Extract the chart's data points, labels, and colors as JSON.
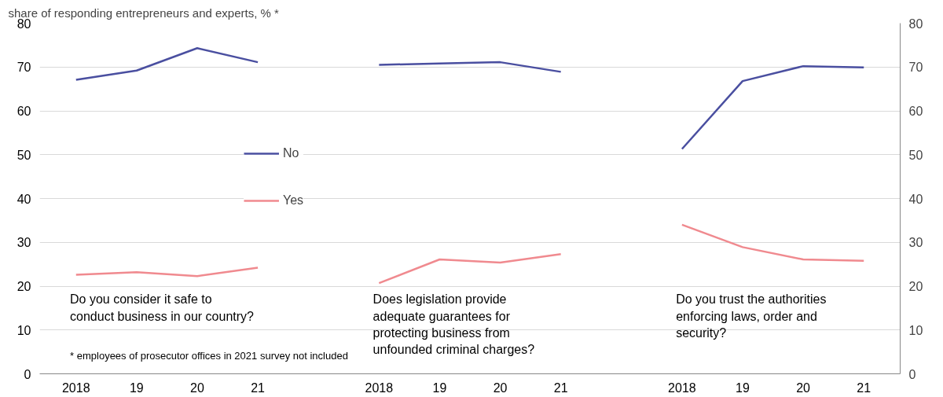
{
  "chart_data": {
    "type": "line",
    "ylabel": "share of responding entrepreneurs and experts, % *",
    "categories": [
      "2018",
      "19",
      "20",
      "21",
      null,
      "2018",
      "19",
      "20",
      "21",
      null,
      "2018",
      "19",
      "20",
      "21"
    ],
    "series": [
      {
        "name": "No",
        "color": "#4a4fa0",
        "values": [
          67.1,
          69.2,
          74.3,
          71.1,
          null,
          70.5,
          70.8,
          71.1,
          68.9,
          null,
          51.3,
          66.8,
          70.2,
          69.9
        ]
      },
      {
        "name": "Yes",
        "color": "#f08a8f",
        "values": [
          22.6,
          23.2,
          22.3,
          24.2,
          null,
          20.7,
          26.1,
          25.4,
          27.3,
          null,
          34.0,
          28.9,
          26.1,
          25.8
        ]
      }
    ],
    "ylim": [
      0,
      80
    ],
    "yticks": [
      0,
      10,
      20,
      30,
      40,
      50,
      60,
      70,
      80
    ],
    "y2lim": [
      0,
      80
    ],
    "y2ticks": [
      0,
      10,
      20,
      30,
      40,
      50,
      60,
      70,
      80
    ],
    "grid": "y",
    "legend": "left",
    "marker": "none",
    "line_style": "solid",
    "annotations": [
      "Do you consider it safe to conduct business in our country?",
      "Does legislation provide adequate guarantees for protecting business from unfounded criminal charges?",
      "Do you trust the authorities enforcing laws, order and security?",
      "* employees of prosecutor offices in 2021 survey not included"
    ]
  }
}
